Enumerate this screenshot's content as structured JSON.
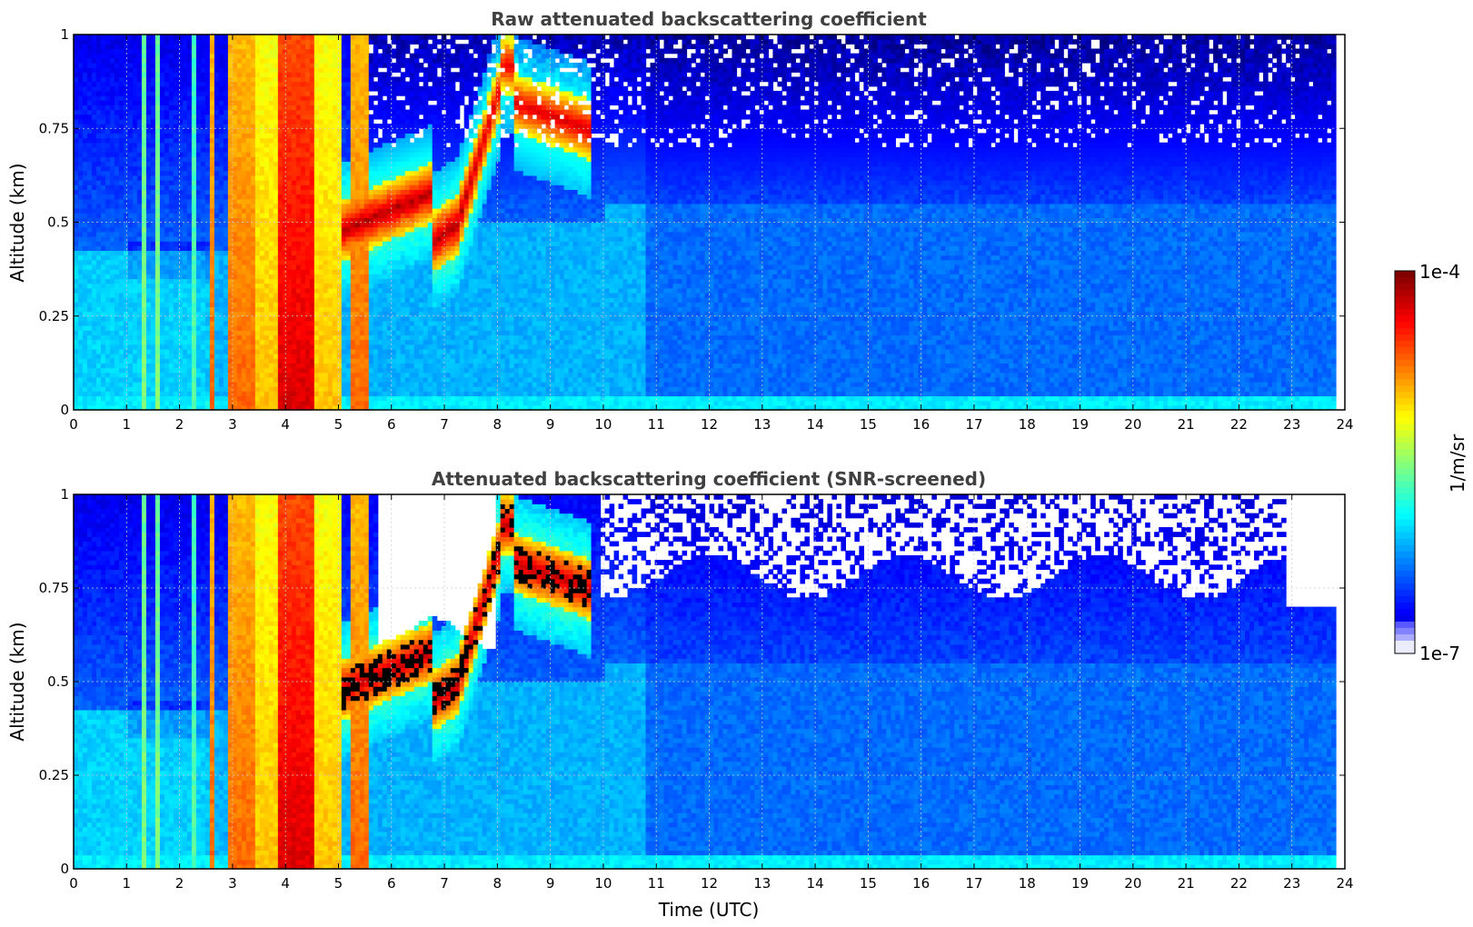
{
  "chart_data": [
    {
      "type": "heatmap",
      "title": "Raw attenuated backscattering coefficient",
      "xlabel": "",
      "ylabel": "Altitude (km)",
      "xlim": [
        0,
        24
      ],
      "ylim": [
        0,
        1
      ],
      "x_ticks": [
        "0",
        "1",
        "2",
        "3",
        "4",
        "5",
        "6",
        "7",
        "8",
        "9",
        "10",
        "11",
        "12",
        "13",
        "14",
        "15",
        "16",
        "17",
        "18",
        "19",
        "20",
        "21",
        "22",
        "23",
        "24"
      ],
      "y_ticks": [
        "0",
        "0.25",
        "0.5",
        "0.75",
        "1"
      ],
      "grid": true,
      "data_end_time": 23.8,
      "colormap": "jet",
      "log_scale": true,
      "features": [
        {
          "kind": "low-cloud columns",
          "x_range": [
            2.5,
            5.6
          ],
          "intensity": "high"
        },
        {
          "kind": "cloud layer",
          "x_range": [
            5.1,
            9.8
          ],
          "y_range": [
            0.45,
            1.0
          ],
          "intensity": "very high"
        },
        {
          "kind": "boundary layer",
          "y_range": [
            0,
            0.45
          ],
          "intensity": "medium"
        }
      ]
    },
    {
      "type": "heatmap",
      "title": "Attenuated backscattering coefficient (SNR-screened)",
      "xlabel": "Time (UTC)",
      "ylabel": "Altitude (km)",
      "xlim": [
        0,
        24
      ],
      "ylim": [
        0,
        1
      ],
      "x_ticks": [
        "0",
        "1",
        "2",
        "3",
        "4",
        "5",
        "6",
        "7",
        "8",
        "9",
        "10",
        "11",
        "12",
        "13",
        "14",
        "15",
        "16",
        "17",
        "18",
        "19",
        "20",
        "21",
        "22",
        "23",
        "24"
      ],
      "y_ticks": [
        "0",
        "0.25",
        "0.5",
        "0.75",
        "1"
      ],
      "grid": true,
      "data_end_time": 23.8,
      "colormap": "jet",
      "log_scale": true,
      "features": [
        {
          "kind": "screened (no data)",
          "x_range": [
            6,
            8
          ],
          "y_range": [
            0.65,
            1.0
          ]
        },
        {
          "kind": "screened (no data)",
          "x_range": [
            10,
            23.8
          ],
          "y_range": [
            0.8,
            1.0
          ]
        }
      ]
    }
  ],
  "colorbar": {
    "max_label": "1e-4",
    "min_label": "1e-7",
    "unit_label": "1/m/sr",
    "min_value": 1e-07,
    "max_value": 0.0001,
    "scale": "log"
  }
}
